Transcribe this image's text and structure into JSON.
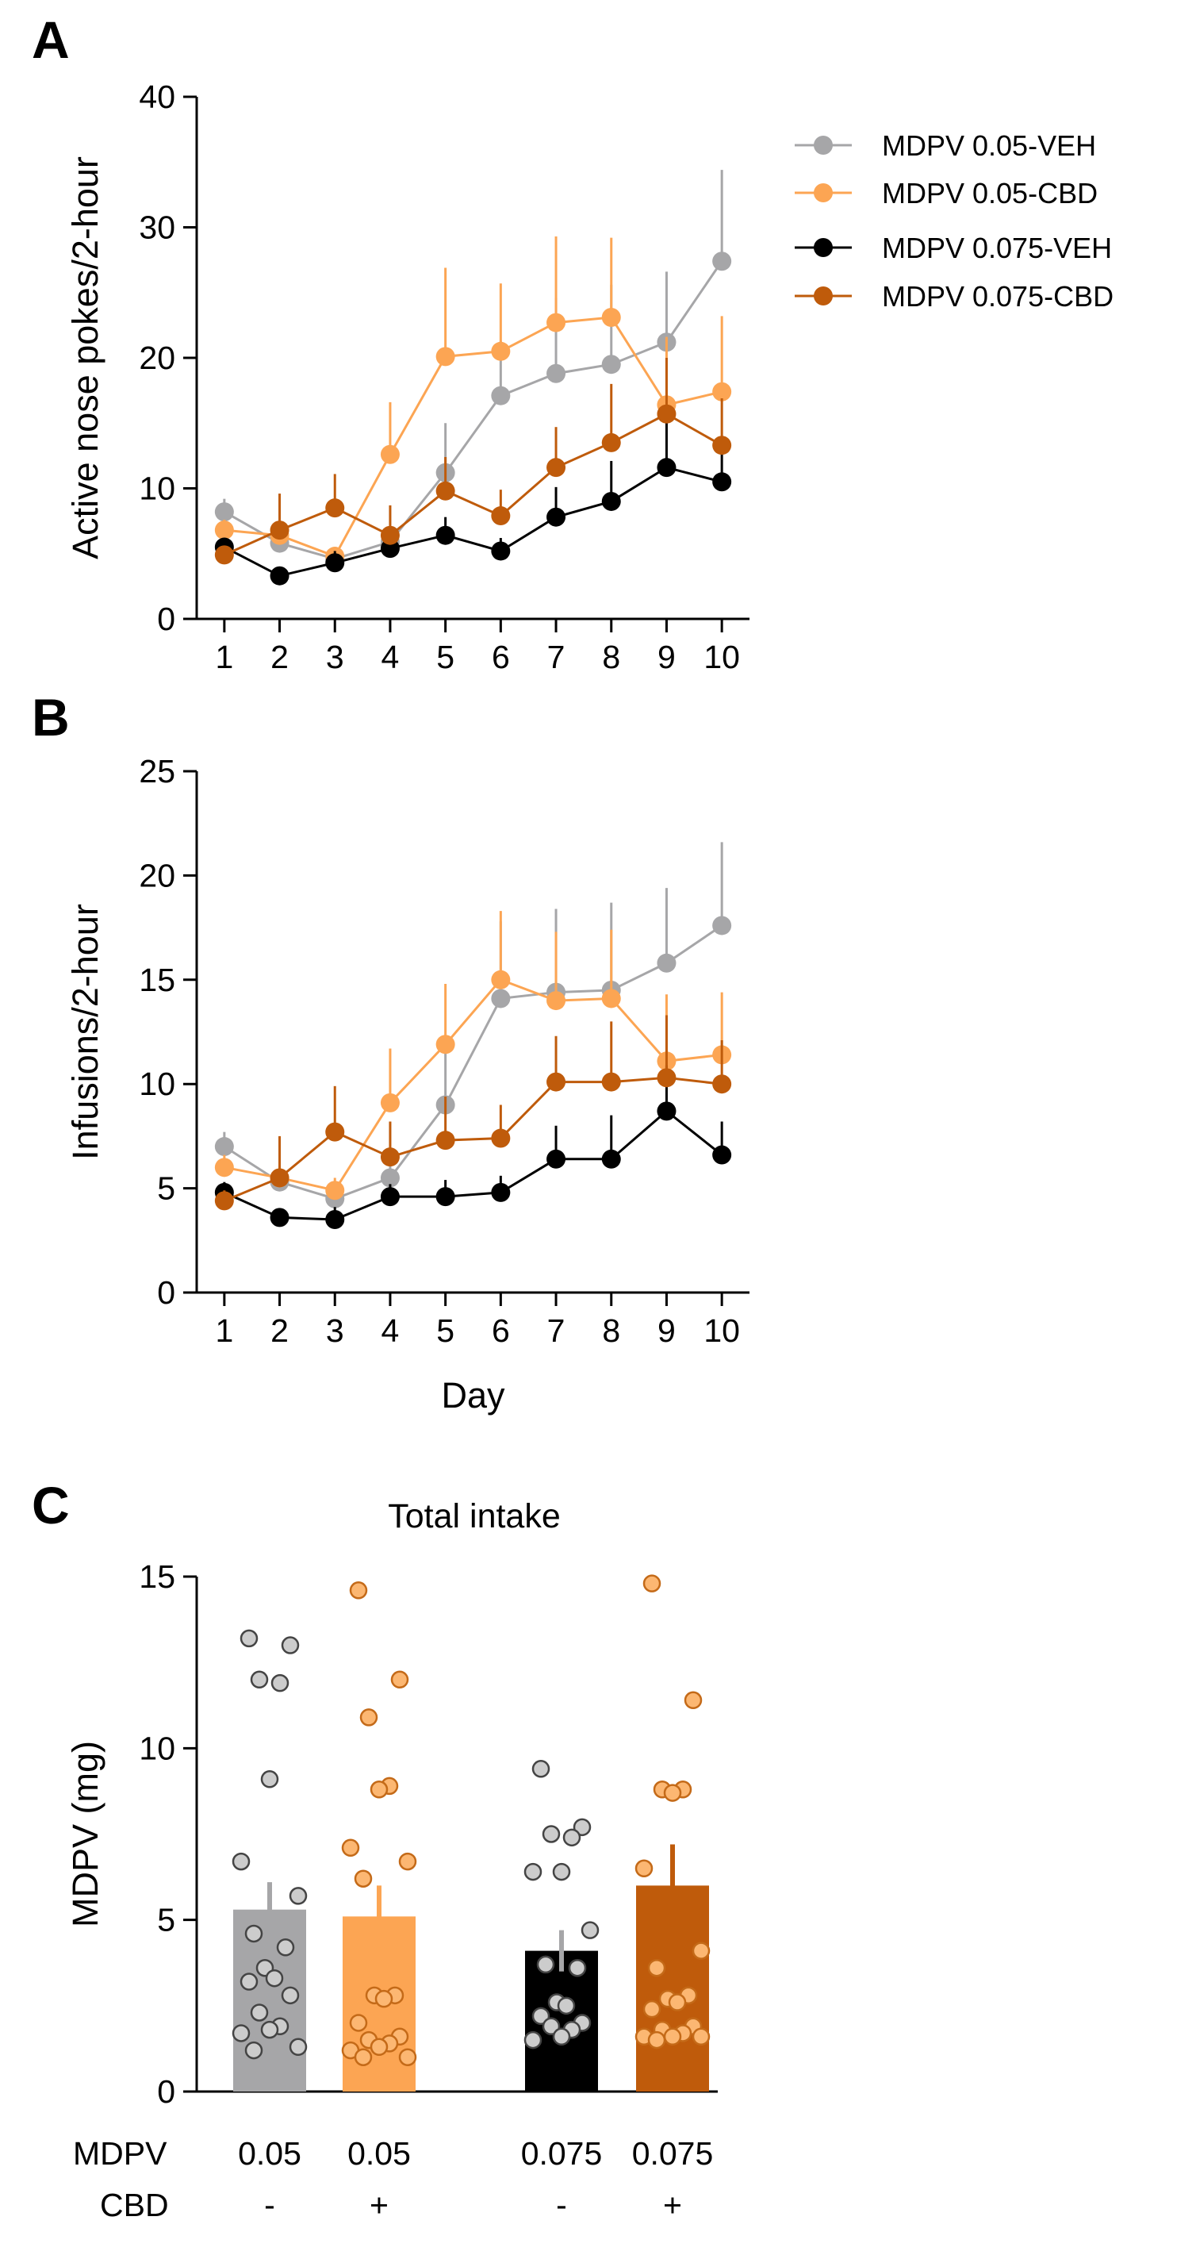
{
  "chart_data": [
    {
      "panel": "A",
      "type": "line",
      "title": "",
      "xlabel": "",
      "ylabel": "Active nose pokes/2-hour",
      "ylim": [
        0,
        40
      ],
      "yticks": [
        0,
        10,
        20,
        30,
        40
      ],
      "x": [
        1,
        2,
        3,
        4,
        5,
        6,
        7,
        8,
        9,
        10
      ],
      "xtick_labels": [
        "1",
        "2",
        "3",
        "4",
        "5",
        "6",
        "7",
        "8",
        "9",
        "10"
      ],
      "series": [
        {
          "name": "MDPV 0.05-VEH",
          "color": "#a6a6a8",
          "values": [
            8.2,
            5.8,
            4.6,
            5.9,
            11.2,
            17.1,
            18.8,
            19.5,
            21.2,
            27.4
          ],
          "err": [
            1.0,
            0.8,
            0.6,
            1.0,
            3.8,
            4.2,
            5.8,
            6.1,
            5.4,
            7.0
          ]
        },
        {
          "name": "MDPV 0.05-CBD",
          "color": "#fca553",
          "values": [
            6.8,
            6.4,
            4.8,
            12.6,
            20.1,
            20.5,
            22.7,
            23.1,
            16.4,
            17.4
          ],
          "err": [
            0.8,
            0.9,
            0.6,
            4.0,
            6.8,
            5.2,
            6.6,
            6.1,
            5.2,
            5.8
          ]
        },
        {
          "name": "MDPV 0.075-VEH",
          "color": "#000000",
          "values": [
            5.5,
            3.3,
            4.3,
            5.4,
            6.4,
            5.2,
            7.8,
            9.0,
            11.6,
            10.5
          ],
          "err": [
            0.6,
            0.4,
            0.9,
            0.8,
            1.4,
            1.0,
            2.3,
            3.1,
            4.1,
            2.7
          ]
        },
        {
          "name": "MDPV 0.075-CBD",
          "color": "#bf5b0b",
          "values": [
            4.9,
            6.8,
            8.5,
            6.4,
            9.8,
            7.9,
            11.6,
            13.5,
            15.7,
            13.3
          ],
          "err": [
            0.6,
            2.8,
            2.6,
            2.3,
            2.6,
            2.0,
            3.1,
            4.5,
            4.3,
            3.6
          ]
        }
      ]
    },
    {
      "panel": "B",
      "type": "line",
      "title": "",
      "xlabel": "Day",
      "ylabel": "Infusions/2-hour",
      "ylim": [
        0,
        25
      ],
      "yticks": [
        0,
        5,
        10,
        15,
        20,
        25
      ],
      "x": [
        1,
        2,
        3,
        4,
        5,
        6,
        7,
        8,
        9,
        10
      ],
      "xtick_labels": [
        "1",
        "2",
        "3",
        "4",
        "5",
        "6",
        "7",
        "8",
        "9",
        "10"
      ],
      "series": [
        {
          "name": "MDPV 0.05-VEH",
          "color": "#a6a6a8",
          "values": [
            7.0,
            5.3,
            4.5,
            5.5,
            9.0,
            14.1,
            14.4,
            14.5,
            15.8,
            17.6
          ],
          "err": [
            0.7,
            0.6,
            0.5,
            0.8,
            3.3,
            3.7,
            4.0,
            4.2,
            3.6,
            4.0
          ]
        },
        {
          "name": "MDPV 0.05-CBD",
          "color": "#fca553",
          "values": [
            6.0,
            5.5,
            4.9,
            9.1,
            11.9,
            15.0,
            14.0,
            14.1,
            11.1,
            11.4
          ],
          "err": [
            0.6,
            0.6,
            0.6,
            2.6,
            2.9,
            3.3,
            3.3,
            3.3,
            3.2,
            3.0
          ]
        },
        {
          "name": "MDPV 0.075-VEH",
          "color": "#000000",
          "values": [
            4.8,
            3.6,
            3.5,
            4.6,
            4.6,
            4.8,
            6.4,
            6.4,
            8.7,
            6.6
          ],
          "err": [
            0.5,
            0.3,
            0.6,
            0.6,
            0.8,
            0.8,
            1.6,
            2.1,
            2.2,
            1.6
          ]
        },
        {
          "name": "MDPV 0.075-CBD",
          "color": "#bf5b0b",
          "values": [
            4.4,
            5.5,
            7.7,
            6.5,
            7.3,
            7.4,
            10.1,
            10.1,
            10.3,
            10.0
          ],
          "err": [
            0.5,
            2.0,
            2.2,
            1.7,
            2.1,
            1.6,
            2.2,
            2.9,
            3.0,
            2.1
          ]
        }
      ]
    },
    {
      "panel": "C",
      "type": "bar",
      "title": "Total intake",
      "xlabel": "",
      "ylabel": "MDPV (mg)",
      "ylim": [
        0,
        15
      ],
      "yticks": [
        0,
        5,
        10,
        15
      ],
      "categories": [
        "MDPV 0.05-VEH",
        "MDPV 0.05-CBD",
        "MDPV 0.075-VEH",
        "MDPV 0.075-CBD"
      ],
      "row_labels": {
        "mdpv_title": "MDPV",
        "cbd_title": "CBD",
        "mdpv": [
          "0.05",
          "0.05",
          "0.075",
          "0.075"
        ],
        "cbd": [
          "-",
          "+",
          "-",
          "+"
        ]
      },
      "colors": [
        "#a6a6a8",
        "#fca553",
        "#000000",
        "#bf5b0b"
      ],
      "dot_colors": [
        "#cccccc",
        "#fcb772",
        "#cccccc",
        "#fcb772"
      ],
      "values": [
        5.3,
        5.1,
        4.1,
        6.0
      ],
      "err": [
        0.8,
        0.9,
        0.6,
        1.2
      ],
      "points": [
        [
          13.2,
          13.0,
          12.0,
          11.9,
          9.1,
          6.7,
          5.7,
          4.6,
          4.2,
          3.6,
          3.3,
          3.2,
          2.8,
          2.3,
          1.9,
          1.8,
          1.7,
          1.3,
          1.2
        ],
        [
          14.6,
          12.0,
          10.9,
          8.9,
          8.8,
          7.1,
          6.7,
          6.2,
          2.8,
          2.8,
          2.7,
          2.0,
          1.6,
          1.5,
          1.4,
          1.3,
          1.2,
          1.0,
          1.0
        ],
        [
          9.4,
          7.7,
          7.5,
          7.4,
          6.4,
          6.4,
          4.7,
          3.7,
          3.6,
          2.6,
          2.5,
          2.2,
          2.0,
          1.9,
          1.8,
          1.6,
          1.5
        ],
        [
          14.8,
          11.4,
          8.8,
          8.8,
          8.7,
          6.5,
          4.1,
          3.6,
          2.8,
          2.7,
          2.6,
          2.4,
          1.9,
          1.8,
          1.7,
          1.6,
          1.6,
          1.6,
          1.5
        ]
      ]
    }
  ],
  "legend": {
    "entries": [
      {
        "label": "MDPV 0.05-VEH",
        "color": "#a6a6a8"
      },
      {
        "label": "MDPV 0.05-CBD",
        "color": "#fca553"
      },
      {
        "label": "MDPV 0.075-VEH",
        "color": "#000000"
      },
      {
        "label": "MDPV 0.075-CBD",
        "color": "#bf5b0b"
      }
    ]
  },
  "panel_letters": [
    "A",
    "B",
    "C"
  ]
}
